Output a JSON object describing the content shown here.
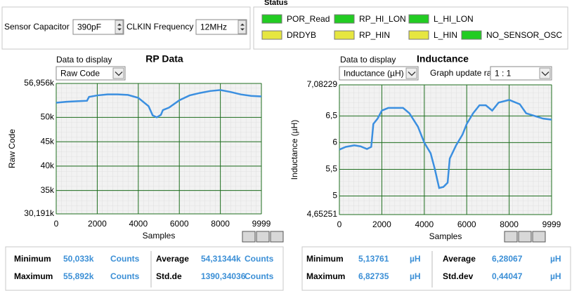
{
  "settings": [
    {
      "label": "Sensor Capacitor",
      "value": "390pF"
    },
    {
      "label": "CLKIN Frequency",
      "value": "12MHz"
    }
  ],
  "status": {
    "title": "Status",
    "indicators": [
      "POR_Read",
      "RP_HI_LON",
      "L_HI_LON",
      "DRDYB",
      "RP_HIN",
      "L_HIN",
      "NO_SENSOR_OSC"
    ]
  },
  "panels": [
    {
      "display_label": "Data to display",
      "display_value": "Raw Code"
    },
    {
      "display_label": "Data to display",
      "display_value": "Inductance (µH)",
      "rate_label": "Graph update rate",
      "rate_value": "1 : 1"
    }
  ],
  "chart_data": [
    {
      "type": "line",
      "title": "RP Data",
      "x_label": "Samples",
      "y_label": "Raw Code",
      "x": [
        0,
        500,
        1000,
        1500,
        1600,
        2000,
        2500,
        3000,
        3500,
        4000,
        4500,
        4700,
        4900,
        5100,
        5200,
        5500,
        6000,
        6500,
        7000,
        7500,
        8000,
        8500,
        9000,
        9500,
        9999
      ],
      "values": [
        53000,
        53200,
        53300,
        53400,
        54200,
        54500,
        54700,
        54700,
        54600,
        54000,
        52300,
        50400,
        50000,
        50500,
        51500,
        52000,
        53500,
        54500,
        55000,
        55400,
        55600,
        55200,
        54700,
        54400,
        54300
      ],
      "color": "#3b8fe0",
      "xlim": [
        0,
        9999
      ],
      "xticks": [
        0,
        2000,
        4000,
        6000,
        8000,
        9999
      ],
      "ylim": [
        30191,
        56956
      ],
      "yticks": [
        {
          "value": 30191,
          "label": "30,191k"
        },
        {
          "value": 35000,
          "label": "35k"
        },
        {
          "value": 40000,
          "label": "40k"
        },
        {
          "value": 45000,
          "label": "45k"
        },
        {
          "value": 50000,
          "label": "50k"
        },
        {
          "value": 56956,
          "label": "56,956k"
        }
      ],
      "grid": true
    },
    {
      "type": "line",
      "title": "Inductance",
      "x_label": "Samples",
      "y_label": "Inductance (µH)",
      "x": [
        0,
        300,
        700,
        1000,
        1300,
        1500,
        1600,
        1800,
        2000,
        2300,
        3000,
        3300,
        3700,
        4000,
        4300,
        4500,
        4700,
        4900,
        5100,
        5200,
        5500,
        5800,
        6000,
        6300,
        6600,
        6900,
        7200,
        7500,
        8000,
        8500,
        8800,
        9200,
        9600,
        9999
      ],
      "values": [
        5.87,
        5.92,
        5.95,
        5.93,
        5.88,
        5.92,
        6.35,
        6.45,
        6.6,
        6.65,
        6.65,
        6.55,
        6.3,
        6.0,
        5.8,
        5.5,
        5.15,
        5.17,
        5.25,
        5.7,
        5.95,
        6.15,
        6.35,
        6.55,
        6.7,
        6.7,
        6.6,
        6.75,
        6.8,
        6.72,
        6.55,
        6.5,
        6.45,
        6.43
      ],
      "color": "#3b8fe0",
      "xlim": [
        0,
        9999
      ],
      "xticks": [
        0,
        2000,
        4000,
        6000,
        8000,
        9999
      ],
      "ylim": [
        4.65251,
        7.08229
      ],
      "yticks": [
        {
          "value": 4.65251,
          "label": "4,65251"
        },
        5,
        {
          "value": 5.5,
          "label": "5,5"
        },
        6,
        {
          "value": 6.5,
          "label": "6,5"
        },
        {
          "value": 7.08229,
          "label": "7,08229"
        }
      ],
      "grid": true
    }
  ],
  "stats": [
    {
      "rows": [
        [
          "Minimum",
          "50,033k",
          "Counts",
          "Average",
          "54,31344k",
          "Counts"
        ],
        [
          "Maximum",
          "55,892k",
          "Counts",
          "Std.de",
          "1390,34036",
          "Counts"
        ]
      ]
    },
    {
      "rows": [
        [
          "Minimum",
          "5,13761",
          "µH",
          "Average",
          "6,28067",
          "µH"
        ],
        [
          "Maximum",
          "6,82735",
          "µH",
          "Std.dev",
          "0,44047",
          "µH"
        ]
      ]
    }
  ]
}
